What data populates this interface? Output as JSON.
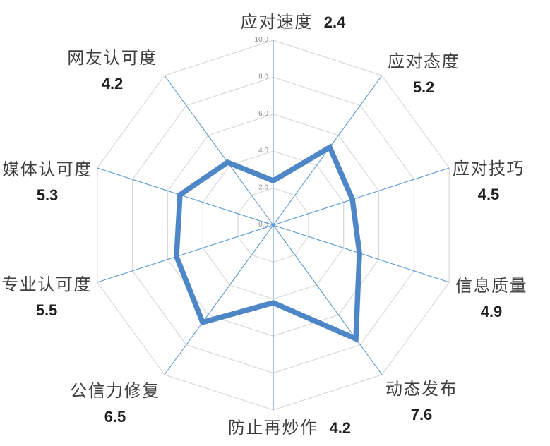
{
  "chart_data": {
    "type": "radar",
    "title": "",
    "categories": [
      "应对速度",
      "应对态度",
      "应对技巧",
      "信息质量",
      "动态发布",
      "防止再炒作",
      "公信力修复",
      "专业认可度",
      "媒体认可度",
      "网友认可度"
    ],
    "values": [
      2.4,
      5.2,
      4.5,
      4.9,
      7.6,
      4.2,
      6.5,
      5.5,
      5.3,
      4.2
    ],
    "value_labels": [
      "2.4",
      "5.2",
      "4.5",
      "4.9",
      "7.6",
      "4.2",
      "6.5",
      "5.5",
      "5.3",
      "4.2"
    ],
    "radial_axis": {
      "min": 0,
      "max": 10,
      "tick_interval": 2,
      "ticks": [
        {
          "value": 0,
          "label": "0.0"
        },
        {
          "value": 2,
          "label": "2.0"
        },
        {
          "value": 4,
          "label": "4.0"
        },
        {
          "value": 6,
          "label": "6.0"
        },
        {
          "value": 8,
          "label": "8.0"
        },
        {
          "value": 10,
          "label": "10.0"
        }
      ]
    },
    "grid": true,
    "legend": false,
    "layout_hint": "axes start at top, clockwise; gridlines are concentric decagons",
    "colors": {
      "series": "#4e87c8",
      "spokes": "#5b9bd5",
      "gridlines": "#d9d9d9",
      "tick_text": "#8c8c8c",
      "label_text": "#3f3f3f",
      "value_text": "#1f1f1f",
      "background": "#ffffff"
    }
  }
}
